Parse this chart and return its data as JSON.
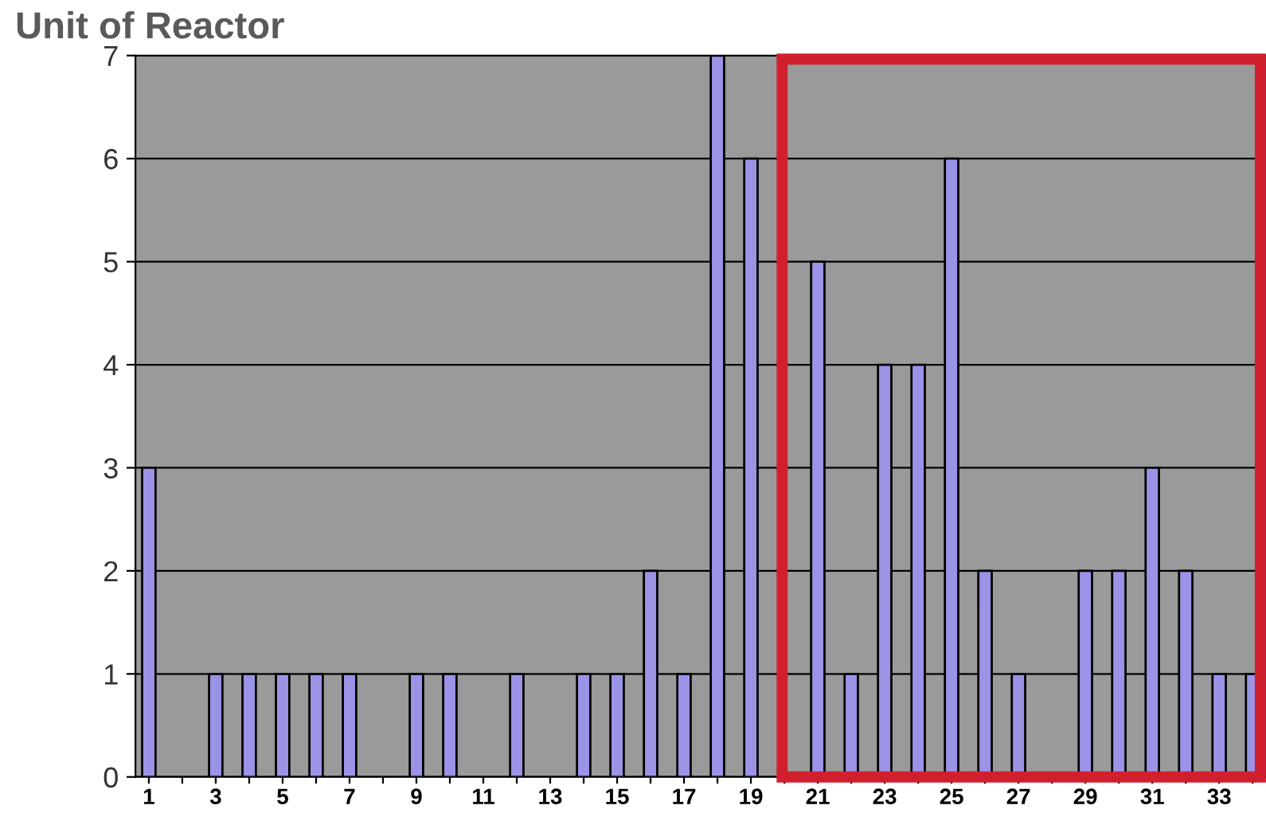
{
  "chart_data": {
    "type": "bar",
    "title": "Unit of Reactor",
    "categories": [
      "1",
      null,
      "3",
      null,
      "5",
      null,
      "7",
      null,
      "9",
      null,
      "11",
      null,
      "13",
      null,
      "15",
      null,
      "17",
      null,
      "19",
      null,
      "21",
      null,
      "23",
      null,
      "25",
      null,
      "27",
      null,
      "29",
      null,
      "31",
      null,
      "33",
      null
    ],
    "values": [
      3,
      0,
      1,
      1,
      1,
      1,
      1,
      0,
      1,
      1,
      0,
      1,
      0,
      1,
      1,
      2,
      1,
      7,
      6,
      0,
      5,
      1,
      4,
      4,
      6,
      2,
      1,
      0,
      2,
      2,
      3,
      2,
      1,
      1
    ],
    "color": "#9b93e6",
    "ylim": [
      0,
      7
    ],
    "yticks": [
      0,
      1,
      2,
      3,
      4,
      5,
      6,
      7
    ],
    "grid": "y"
  }
}
